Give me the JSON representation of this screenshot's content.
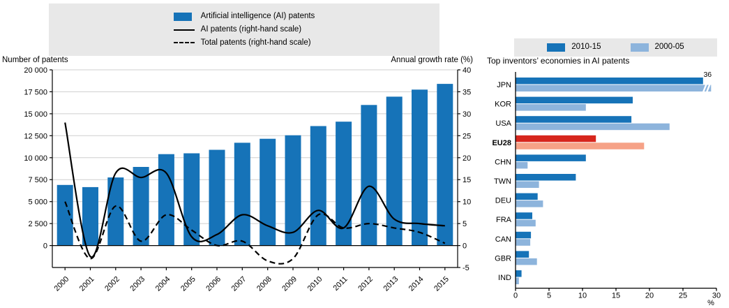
{
  "colors": {
    "bar_blue": "#1673b8",
    "light_blue": "#8db4dc",
    "highlight_red": "#d7261d",
    "highlight_salmon": "#f6a287",
    "legend_bg": "#e8e8e8",
    "gridline": "#cfcfcf",
    "line_black": "#000000"
  },
  "chart_data": [
    {
      "type": "bar+line",
      "panel": "left",
      "categories": [
        "2000",
        "2001",
        "2002",
        "2003",
        "2004",
        "2005",
        "2006",
        "2007",
        "2008",
        "2009",
        "2010",
        "2011",
        "2012",
        "2013",
        "2014",
        "2015"
      ],
      "series": [
        {
          "name": "Artificial intelligence (AI) patents",
          "render": "bar",
          "axis": "left",
          "values": [
            6900,
            6650,
            7750,
            8950,
            10400,
            10500,
            10900,
            11700,
            12150,
            12550,
            13600,
            14100,
            16000,
            16950,
            17750,
            18400
          ]
        },
        {
          "name": "AI patents (right-hand scale)",
          "render": "line-solid",
          "axis": "right",
          "values": [
            28,
            -2.5,
            16.5,
            15.5,
            16.5,
            2,
            2.5,
            7,
            4.5,
            3,
            8,
            4,
            13.5,
            6,
            5,
            4.5
          ]
        },
        {
          "name": "Total patents (right-hand scale)",
          "render": "line-dashed",
          "axis": "right",
          "values": [
            10,
            -3,
            9,
            1,
            7,
            3.5,
            0,
            1,
            -3.5,
            -3,
            7,
            4,
            5,
            4,
            3,
            0.5
          ]
        }
      ],
      "y_left": {
        "title": "Number of patents",
        "min": 0,
        "max": 20000,
        "tick_values": [
          0,
          2500,
          5000,
          7500,
          10000,
          12500,
          15000,
          17500,
          20000
        ],
        "tick_labels": [
          "0",
          "2 500",
          "5 000",
          "7 500",
          "10 000",
          "12 500",
          "15 000",
          "17 500",
          "20 000"
        ]
      },
      "y_right": {
        "title": "Annual growth rate (%)",
        "min": -5,
        "max": 40,
        "tick_values": [
          -5,
          0,
          5,
          10,
          15,
          20,
          25,
          30,
          35,
          40
        ],
        "tick_labels": [
          "-5",
          "0",
          "5",
          "10",
          "15",
          "20",
          "25",
          "30",
          "35",
          "40"
        ]
      },
      "grid": true
    },
    {
      "type": "bar",
      "orientation": "horizontal",
      "panel": "right",
      "title": "Top inventors’ economies in AI patents",
      "categories": [
        "JPN",
        "KOR",
        "USA",
        "EU28",
        "CHN",
        "TWN",
        "DEU",
        "FRA",
        "CAN",
        "GBR",
        "IND"
      ],
      "series": [
        {
          "name": "2010-15",
          "values": [
            28,
            17.5,
            17.3,
            12,
            10.5,
            9,
            3.3,
            2.5,
            2.3,
            2,
            0.9
          ]
        },
        {
          "name": "2000-05",
          "values": [
            36,
            10.5,
            23,
            19.2,
            1.8,
            3.5,
            4.1,
            3,
            2.2,
            3.2,
            0.5
          ]
        }
      ],
      "xlim": [
        0,
        30
      ],
      "x_tick_values": [
        0,
        5,
        10,
        15,
        20,
        25,
        30
      ],
      "xlabel": "%",
      "highlight_category": "EU28",
      "axis_break": {
        "category": "JPN",
        "series": "2000-05",
        "display_at": 29.2,
        "label": "36"
      },
      "legend_position": "top"
    }
  ]
}
